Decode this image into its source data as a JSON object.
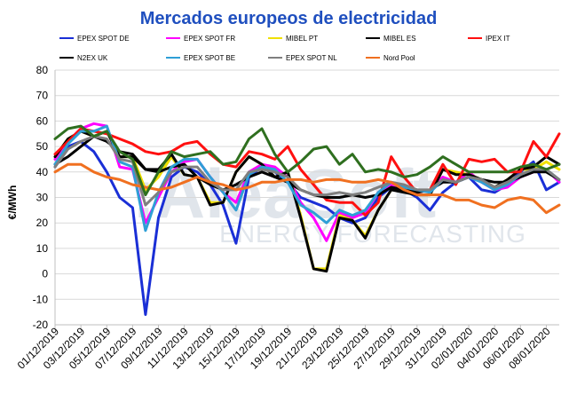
{
  "chart_data": {
    "type": "line",
    "title": "Mercados europeos de electricidad",
    "ylabel": "€/MWh",
    "xlabel": "",
    "ylim": [
      -20,
      80
    ],
    "yticks": [
      -20,
      -10,
      0,
      10,
      20,
      30,
      40,
      50,
      60,
      70,
      80
    ],
    "grid": "horizontal",
    "legend_position": "top",
    "watermark": [
      "AleaSoft",
      "ENERGY FORECASTING"
    ],
    "x": [
      "01/12/2019",
      "02/12/2019",
      "03/12/2019",
      "04/12/2019",
      "05/12/2019",
      "06/12/2019",
      "07/12/2019",
      "08/12/2019",
      "09/12/2019",
      "10/12/2019",
      "11/12/2019",
      "12/12/2019",
      "13/12/2019",
      "14/12/2019",
      "15/12/2019",
      "16/12/2019",
      "17/12/2019",
      "18/12/2019",
      "19/12/2019",
      "20/12/2019",
      "21/12/2019",
      "22/12/2019",
      "23/12/2019",
      "24/12/2019",
      "25/12/2019",
      "26/12/2019",
      "27/12/2019",
      "28/12/2019",
      "29/12/2019",
      "30/12/2019",
      "31/12/2019",
      "01/01/2020",
      "02/01/2020",
      "03/01/2020",
      "04/01/2020",
      "05/01/2020",
      "06/01/2020",
      "07/01/2020",
      "08/01/2020",
      "09/01/2020"
    ],
    "xtick_labels": [
      "01/12/2019",
      "03/12/2019",
      "05/12/2019",
      "07/12/2019",
      "09/12/2019",
      "11/12/2019",
      "13/12/2019",
      "15/12/2019",
      "17/12/2019",
      "19/12/2019",
      "21/12/2019",
      "23/12/2019",
      "25/12/2019",
      "27/12/2019",
      "29/12/2019",
      "31/12/2019",
      "02/01/2020",
      "04/01/2020",
      "06/01/2020",
      "08/01/2020"
    ],
    "series": [
      {
        "name": "EPEX SPOT DE",
        "color": "#1a2fd6",
        "values": [
          42,
          50,
          52,
          48,
          40,
          30,
          26,
          -16,
          22,
          38,
          42,
          40,
          35,
          27,
          12,
          38,
          42,
          40,
          36,
          30,
          28,
          26,
          22,
          20,
          22,
          30,
          34,
          33,
          30,
          25,
          32,
          36,
          38,
          33,
          32,
          35,
          40,
          44,
          33,
          36
        ]
      },
      {
        "name": "EPEX SPOT FR",
        "color": "#ff00ff",
        "values": [
          45,
          52,
          57,
          59,
          58,
          42,
          41,
          20,
          30,
          40,
          44,
          45,
          38,
          32,
          28,
          40,
          43,
          42,
          38,
          28,
          22,
          13,
          24,
          22,
          24,
          32,
          35,
          34,
          32,
          33,
          38,
          36,
          40,
          36,
          33,
          34,
          38,
          40,
          41,
          36
        ]
      },
      {
        "name": "MIBEL PT",
        "color": "#f0e000",
        "values": [
          46,
          53,
          56,
          54,
          56,
          46,
          46,
          33,
          38,
          46,
          39,
          38,
          28,
          28,
          40,
          46,
          43,
          38,
          40,
          23,
          2,
          2,
          23,
          21,
          15,
          25,
          33,
          33,
          31,
          31,
          41,
          40,
          39,
          37,
          34,
          37,
          41,
          41,
          44,
          41
        ]
      },
      {
        "name": "MIBEL ES",
        "color": "#000000",
        "values": [
          46,
          53,
          56,
          54,
          56,
          46,
          46,
          41,
          41,
          47,
          39,
          38,
          27,
          28,
          40,
          46,
          43,
          38,
          40,
          22,
          2,
          1,
          22,
          21,
          14,
          25,
          33,
          32,
          31,
          31,
          41,
          39,
          39,
          37,
          34,
          37,
          41,
          42,
          46,
          43
        ]
      },
      {
        "name": "IPEX IT",
        "color": "#ff1010",
        "values": [
          47,
          52,
          57,
          56,
          55,
          53,
          51,
          48,
          47,
          48,
          51,
          52,
          47,
          43,
          42,
          48,
          47,
          45,
          50,
          41,
          35,
          29,
          28,
          28,
          23,
          28,
          46,
          38,
          32,
          33,
          43,
          35,
          45,
          44,
          45,
          40,
          40,
          52,
          46,
          55
        ]
      },
      {
        "name": "N2EX UK",
        "color": "#000000",
        "values": [
          43,
          46,
          50,
          54,
          52,
          48,
          47,
          41,
          40,
          42,
          43,
          38,
          35,
          33,
          35,
          38,
          40,
          38,
          36,
          33,
          31,
          30,
          30,
          31,
          30,
          31,
          34,
          33,
          32,
          33,
          36,
          36,
          38,
          37,
          36,
          36,
          38,
          40,
          40,
          37
        ]
      },
      {
        "name": "EPEX SPOT BE",
        "color": "#2e9fd6",
        "values": [
          43,
          51,
          56,
          56,
          58,
          44,
          42,
          17,
          32,
          42,
          45,
          45,
          38,
          32,
          25,
          39,
          42,
          41,
          36,
          27,
          24,
          20,
          25,
          23,
          25,
          32,
          36,
          34,
          33,
          32,
          37,
          36,
          38,
          36,
          33,
          35,
          39,
          41,
          41,
          37
        ]
      },
      {
        "name": "EPEX SPOT NL",
        "color": "#7f7f7f",
        "values": [
          42,
          49,
          52,
          54,
          53,
          45,
          44,
          27,
          32,
          40,
          42,
          42,
          36,
          33,
          33,
          40,
          41,
          40,
          38,
          33,
          31,
          31,
          32,
          31,
          32,
          34,
          36,
          35,
          33,
          33,
          37,
          36,
          38,
          37,
          34,
          36,
          39,
          41,
          41,
          37
        ]
      },
      {
        "name": "Nord Pool",
        "color": "#f07020",
        "values": [
          40,
          43,
          43,
          40,
          38,
          37,
          35,
          34,
          33,
          34,
          36,
          38,
          36,
          35,
          33,
          34,
          36,
          36,
          37,
          37,
          36,
          37,
          37,
          36,
          36,
          37,
          36,
          33,
          31,
          31,
          31,
          29,
          29,
          27,
          26,
          29,
          30,
          29,
          24,
          27
        ]
      },
      {
        "name": "",
        "color": "#2f6f1f",
        "values": [
          53,
          57,
          58,
          54,
          56,
          48,
          45,
          31,
          40,
          48,
          46,
          47,
          48,
          43,
          44,
          53,
          57,
          47,
          40,
          44,
          49,
          50,
          43,
          47,
          40,
          41,
          40,
          38,
          39,
          42,
          46,
          43,
          40,
          40,
          40,
          40,
          42,
          43,
          41,
          43
        ]
      }
    ]
  }
}
